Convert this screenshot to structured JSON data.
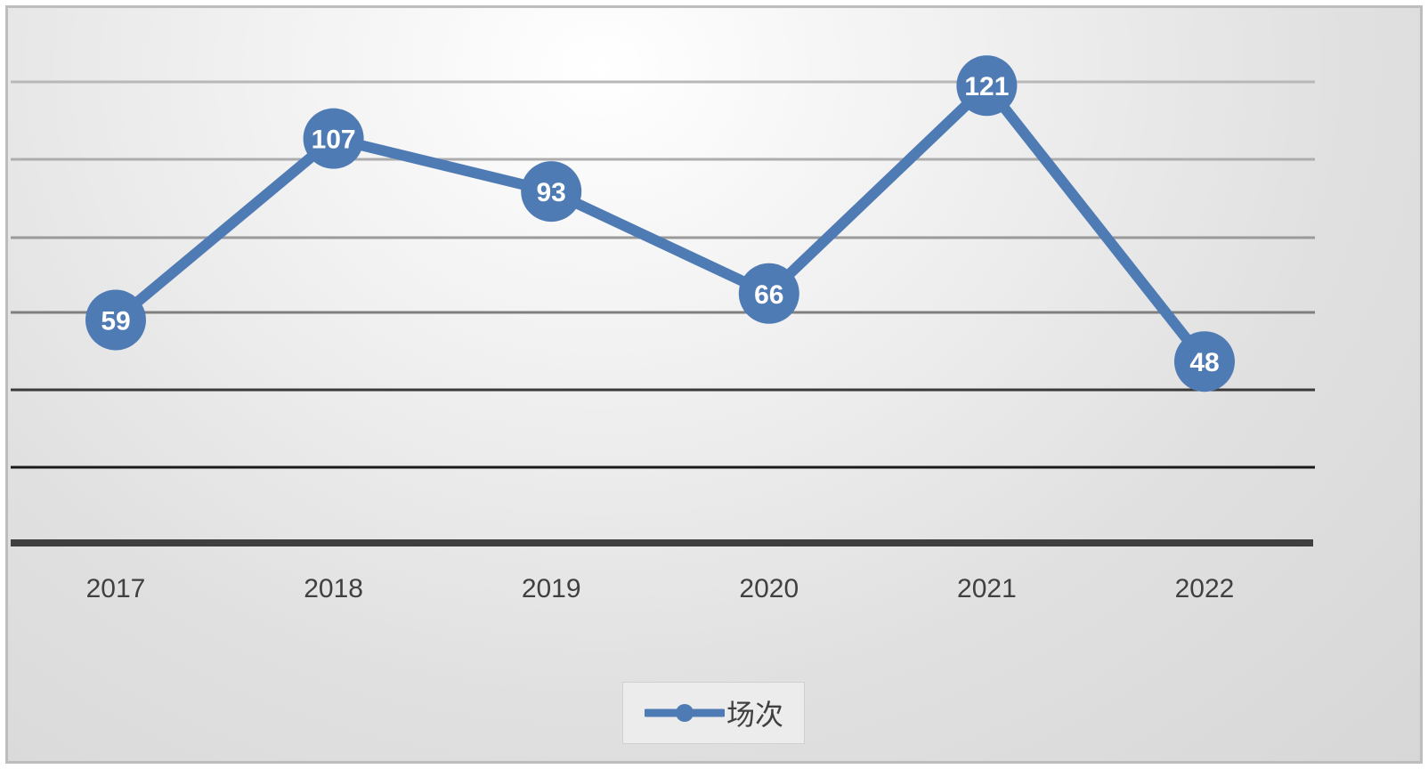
{
  "chart_data": {
    "type": "line",
    "categories": [
      "2017",
      "2018",
      "2019",
      "2020",
      "2021",
      "2022"
    ],
    "series": [
      {
        "name": "场次",
        "values": [
          59,
          107,
          93,
          66,
          121,
          48
        ],
        "color": "#4f7bb5"
      }
    ],
    "data_labels": [
      "59",
      "107",
      "93",
      "66",
      "121",
      "48"
    ],
    "ylim": [
      0,
      126
    ],
    "grid": true,
    "legend": "bottom-center",
    "title": "",
    "xlabel": "",
    "ylabel": ""
  }
}
